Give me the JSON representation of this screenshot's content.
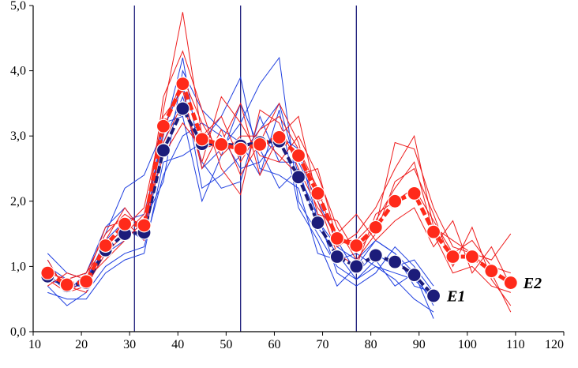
{
  "chart_data": {
    "type": "line",
    "title": "",
    "xlabel": "",
    "ylabel": "",
    "xlim": [
      10,
      120
    ],
    "ylim": [
      0,
      5
    ],
    "x_ticks": [
      10,
      20,
      30,
      40,
      50,
      60,
      70,
      80,
      90,
      100,
      110,
      120
    ],
    "y_ticks": [
      "0,0",
      "1,0",
      "2,0",
      "3,0",
      "4,0",
      "5,0"
    ],
    "y_tick_values": [
      0,
      1,
      2,
      3,
      4,
      5
    ],
    "vertical_lines": [
      31,
      53,
      77
    ],
    "grid": false,
    "colors": {
      "E1": "#1c1c7a",
      "E2": "#ff2a1a",
      "e1_thin": "#1f3fe0",
      "e2_thin": "#ee1c1c",
      "vline": "#1c1c7a"
    },
    "series": [
      {
        "name": "E1",
        "label": "E1",
        "x": [
          13,
          17,
          21,
          25,
          29,
          33,
          37,
          41,
          45,
          49,
          53,
          57,
          61,
          65,
          69,
          73,
          77,
          81,
          85,
          89,
          93
        ],
        "values": [
          0.85,
          0.7,
          0.75,
          1.25,
          1.5,
          1.52,
          2.78,
          3.42,
          2.88,
          2.88,
          2.85,
          2.9,
          2.92,
          2.37,
          1.67,
          1.15,
          1.0,
          1.17,
          1.07,
          0.87,
          0.55
        ]
      },
      {
        "name": "E2",
        "label": "E2",
        "x": [
          13,
          17,
          21,
          25,
          29,
          33,
          37,
          41,
          45,
          49,
          53,
          57,
          61,
          65,
          69,
          73,
          77,
          81,
          85,
          89,
          93,
          97,
          101,
          105,
          109
        ],
        "values": [
          0.9,
          0.72,
          0.77,
          1.32,
          1.65,
          1.63,
          3.15,
          3.8,
          2.95,
          2.87,
          2.8,
          2.87,
          2.98,
          2.7,
          2.12,
          1.43,
          1.32,
          1.6,
          2.0,
          2.12,
          1.53,
          1.15,
          1.15,
          0.93,
          0.75
        ]
      }
    ],
    "individual_e1": [
      [
        1.2,
        0.9,
        0.8,
        1.4,
        1.7,
        1.8,
        3.0,
        4.2,
        2.5,
        2.8,
        3.2,
        3.8,
        4.2,
        2.0,
        1.5,
        1.0,
        0.8,
        1.0,
        0.9,
        0.8,
        0.5
      ],
      [
        0.7,
        0.4,
        0.6,
        1.0,
        1.2,
        1.3,
        2.4,
        3.0,
        3.2,
        3.0,
        2.5,
        2.6,
        3.0,
        2.8,
        1.7,
        1.3,
        1.1,
        1.4,
        1.2,
        0.9,
        0.4
      ],
      [
        1.0,
        0.8,
        0.9,
        1.5,
        2.2,
        2.4,
        3.1,
        3.8,
        2.2,
        2.4,
        2.7,
        3.1,
        3.5,
        2.4,
        1.8,
        0.9,
        0.7,
        0.9,
        1.3,
        1.0,
        0.6
      ],
      [
        0.6,
        0.5,
        0.5,
        0.9,
        1.1,
        1.2,
        2.6,
        2.7,
        2.9,
        3.3,
        3.9,
        2.5,
        2.4,
        2.2,
        1.2,
        1.1,
        1.2,
        1.0,
        0.8,
        0.5,
        0.3
      ],
      [
        0.9,
        0.6,
        0.8,
        1.3,
        1.6,
        1.4,
        2.9,
        3.6,
        2.6,
        2.2,
        2.3,
        3.3,
        2.6,
        2.6,
        2.0,
        1.4,
        0.9,
        1.2,
        1.0,
        1.1,
        0.7
      ],
      [
        0.8,
        0.7,
        0.7,
        1.2,
        1.4,
        1.7,
        2.3,
        4.0,
        3.4,
        3.1,
        2.9,
        2.4,
        3.4,
        1.9,
        1.4,
        0.7,
        1.0,
        1.4,
        1.2,
        0.7,
        0.6
      ],
      [
        1.1,
        0.6,
        0.9,
        1.6,
        1.9,
        1.5,
        3.2,
        3.3,
        2.0,
        2.7,
        3.5,
        2.8,
        2.2,
        2.5,
        1.6,
        1.2,
        0.8,
        1.1,
        0.7,
        0.9,
        0.2
      ]
    ],
    "individual_e2": [
      [
        0.9,
        0.8,
        0.9,
        1.5,
        1.8,
        1.6,
        3.4,
        4.9,
        3.0,
        3.3,
        2.6,
        3.1,
        3.3,
        2.8,
        2.2,
        1.3,
        1.5,
        1.9,
        2.5,
        3.0,
        1.6,
        1.4,
        1.2,
        1.1,
        1.5
      ],
      [
        0.8,
        0.6,
        0.7,
        1.2,
        1.5,
        1.8,
        2.9,
        3.5,
        2.6,
        3.6,
        3.2,
        2.7,
        2.6,
        3.0,
        2.4,
        1.6,
        1.1,
        1.5,
        2.3,
        2.5,
        1.8,
        1.0,
        1.6,
        0.8,
        0.4
      ],
      [
        1.0,
        0.7,
        0.6,
        1.4,
        1.9,
        1.5,
        3.6,
        4.3,
        3.4,
        2.5,
        2.1,
        3.4,
        3.2,
        2.5,
        1.9,
        1.5,
        1.8,
        1.4,
        1.7,
        1.9,
        1.3,
        1.7,
        0.9,
        1.3,
        0.7
      ],
      [
        0.7,
        0.9,
        0.8,
        1.1,
        1.4,
        1.7,
        2.7,
        3.2,
        2.8,
        2.9,
        3.5,
        2.4,
        3.0,
        3.3,
        2.0,
        1.2,
        1.0,
        1.8,
        2.0,
        2.2,
        1.7,
        1.2,
        1.4,
        1.0,
        0.9
      ],
      [
        1.1,
        0.6,
        0.8,
        1.6,
        1.7,
        1.4,
        3.1,
        3.9,
        3.2,
        2.7,
        3.0,
        3.0,
        2.7,
        2.4,
        2.5,
        1.4,
        1.4,
        1.7,
        2.2,
        2.6,
        1.5,
        0.9,
        1.0,
        0.7,
        0.6
      ],
      [
        0.9,
        0.8,
        0.9,
        1.3,
        1.6,
        1.9,
        3.3,
        3.7,
        2.5,
        3.1,
        2.4,
        2.9,
        3.5,
        2.9,
        1.8,
        1.7,
        1.2,
        1.6,
        2.9,
        2.8,
        1.9,
        1.3,
        1.2,
        0.9,
        0.3
      ]
    ]
  }
}
